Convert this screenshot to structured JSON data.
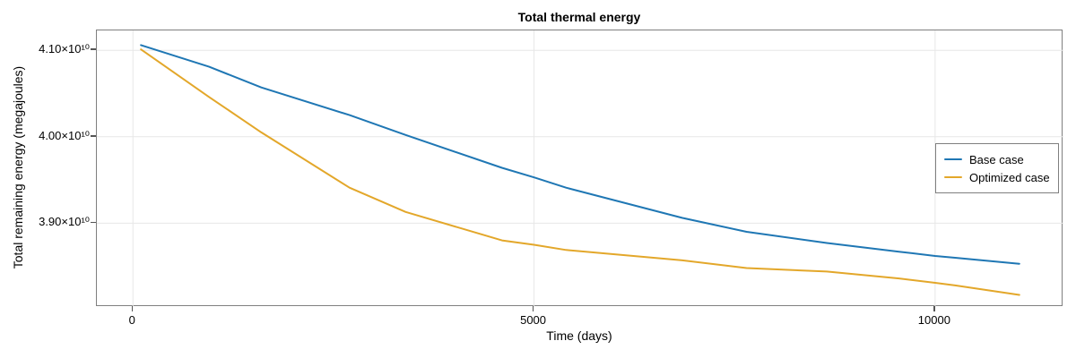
{
  "title": "Total thermal energy",
  "axes": {
    "xlabel": "Time (days)",
    "ylabel": "Total remaining energy (megajoules)"
  },
  "style": {
    "grid_color": "#e7e7e7",
    "frame_color": "#7f7f7f",
    "tick_color": "#555555",
    "background": "#ffffff"
  },
  "legend": {
    "items": [
      "Base case",
      "Optimized case"
    ]
  },
  "chart_data": {
    "type": "line",
    "title": "Total thermal energy",
    "xlabel": "Time (days)",
    "ylabel": "Total remaining energy (megajoules)",
    "grid": true,
    "legend_position": "center right",
    "xlim": [
      -450,
      11600
    ],
    "ylim": [
      38030000000.0,
      41230000000.0
    ],
    "x_ticks": [
      {
        "value": 0,
        "label": "0"
      },
      {
        "value": 5000,
        "label": "5000"
      },
      {
        "value": 10000,
        "label": "10000"
      }
    ],
    "y_ticks": [
      {
        "value": 41000000000.0,
        "label": "4.10×10¹⁰"
      },
      {
        "value": 40000000000.0,
        "label": "4.00×10¹⁰"
      },
      {
        "value": 39000000000.0,
        "label": "3.90×10¹⁰"
      }
    ],
    "x": [
      100,
      950,
      1600,
      2700,
      3400,
      4600,
      5000,
      5400,
      6850,
      7650,
      8650,
      9550,
      10000,
      10250,
      11050
    ],
    "series": [
      {
        "name": "Base case",
        "color": "#1f77b4",
        "values": [
          41060000000.0,
          40810000000.0,
          40570000000.0,
          40250000000.0,
          40020000000.0,
          39640000000.0,
          39530000000.0,
          39410000000.0,
          39060000000.0,
          38900000000.0,
          38770000000.0,
          38670000000.0,
          38620000000.0,
          38600000000.0,
          38530000000.0
        ]
      },
      {
        "name": "Optimized case",
        "color": "#e3a72a",
        "values": [
          41010000000.0,
          40460000000.0,
          40050000000.0,
          39410000000.0,
          39130000000.0,
          38800000000.0,
          38750000000.0,
          38690000000.0,
          38570000000.0,
          38480000000.0,
          38440000000.0,
          38360000000.0,
          38310000000.0,
          38280000000.0,
          38170000000.0
        ]
      }
    ]
  }
}
